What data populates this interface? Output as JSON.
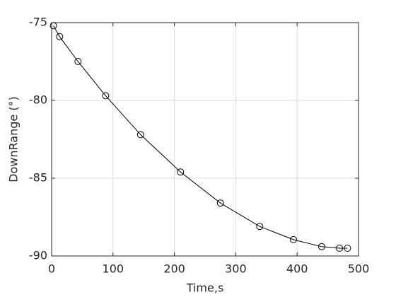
{
  "chart_data": {
    "type": "line",
    "xlabel": "Time,s",
    "ylabel": "DownRange (°)",
    "x": [
      3,
      13,
      43,
      88,
      145,
      210,
      275,
      339,
      394,
      440,
      469,
      482
    ],
    "series": [
      {
        "color": "#000000",
        "marker": "circle",
        "values": [
          -75.2,
          -75.9,
          -77.5,
          -79.7,
          -82.2,
          -84.6,
          -86.6,
          -88.1,
          -88.95,
          -89.4,
          -89.5,
          -89.5
        ]
      }
    ],
    "xlim": [
      0,
      500
    ],
    "xticks": [
      0,
      100,
      200,
      300,
      400,
      500
    ],
    "ylim": [
      -90,
      -75
    ],
    "yticks": [
      -90,
      -85,
      -80,
      -75
    ],
    "grid": true
  }
}
